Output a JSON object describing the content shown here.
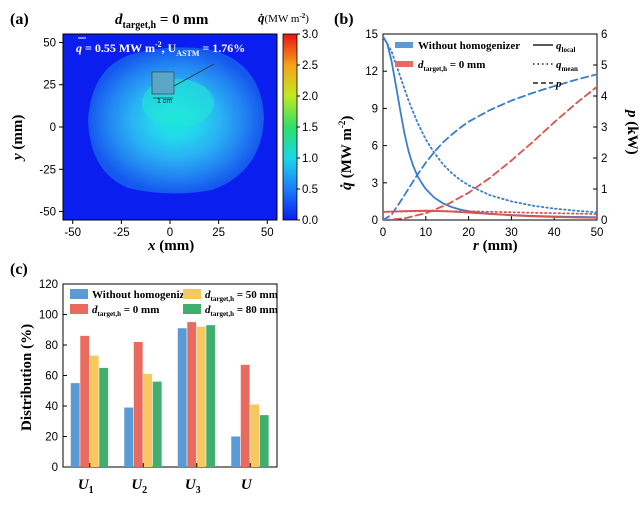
{
  "panels": {
    "a": {
      "label": "(a)",
      "title_d": "d",
      "title_sub": "target,h",
      "title_rest": " = 0 mm",
      "annotation_q": "q",
      "annotation_rest1": " = 0.55 MW m",
      "annotation_sup": "-2",
      "annotation_rest2": ", U",
      "annotation_sub": "ASTM",
      "annotation_rest3": " = 1.76%",
      "scale_bar": "1 cm",
      "colorbar_title": "q̇",
      "colorbar_unit": "(MW m",
      "colorbar_unit_sup": "-2",
      "colorbar_unit_end": ")",
      "x_label": "x",
      "x_unit": " (mm)",
      "y_label": "y",
      "y_unit": " (mm)"
    },
    "b": {
      "label": "(b)",
      "x_label": "r",
      "x_unit": " (mm)",
      "y_left_label": "q̇",
      "y_left_unit": " (MW m",
      "y_left_sup": "-2",
      "y_left_end": ")",
      "y_right_label": "p",
      "y_right_unit": " (kW)",
      "legend_without": "Without homogenizer",
      "legend_dtarget_d": "d",
      "legend_dtarget_sub": "target,h",
      "legend_dtarget_rest": " = 0 mm",
      "legend_qlocal": "q",
      "legend_qlocal_sub": "local",
      "legend_qmean": "q",
      "legend_qmean_sub": "mean",
      "legend_p": "p"
    },
    "c": {
      "label": "(c)",
      "y_label": "Distribution (%)",
      "categories": [
        {
          "main": "U",
          "sub": "1"
        },
        {
          "main": "U",
          "sub": "2"
        },
        {
          "main": "U",
          "sub": "3"
        },
        {
          "main": "U",
          "sub": ""
        }
      ],
      "legend": [
        {
          "text": "Without homogenizer"
        },
        {
          "d": "d",
          "sub": "target,h",
          "rest": " = 0 mm"
        },
        {
          "d": "d",
          "sub": "target,h",
          "rest": " = 50 mm"
        },
        {
          "d": "d",
          "sub": "target,h",
          "rest": " = 80 mm"
        }
      ]
    }
  },
  "colors": {
    "blue": "#5B9BD5",
    "red": "#E96B5F",
    "yellow": "#F6C85F",
    "green": "#3FAE6E",
    "line_blue": "#3A7DC9",
    "line_red": "#D9534F"
  },
  "chart_data": [
    {
      "type": "heatmap",
      "panel": "(a)",
      "x_range": [
        -55,
        55
      ],
      "y_range": [
        -55,
        55
      ],
      "x_ticks": [
        -50,
        -25,
        0,
        25,
        50
      ],
      "y_ticks": [
        -50,
        -25,
        0,
        25,
        50
      ],
      "colorbar_range": [
        0.0,
        3.0
      ],
      "colorbar_ticks": [
        "0.0",
        "0.5",
        "1.0",
        "1.5",
        "2.0",
        "2.5",
        "3.0"
      ]
    },
    {
      "type": "line",
      "panel": "(b)",
      "x_range": [
        0,
        50
      ],
      "x_ticks": [
        0,
        10,
        20,
        30,
        40,
        50
      ],
      "y_left_range": [
        0,
        15
      ],
      "y_left_ticks": [
        0,
        3,
        6,
        9,
        12,
        15
      ],
      "y_right_range": [
        0,
        6
      ],
      "y_right_ticks": [
        0,
        1,
        2,
        3,
        4,
        5,
        6
      ],
      "series": [
        {
          "name": "Without homogenizer q_local",
          "axis": "left",
          "style": "solid",
          "color": "blue",
          "x": [
            0,
            1,
            2,
            3,
            4,
            5,
            6,
            7,
            8,
            9,
            10,
            12,
            14,
            16,
            18,
            20,
            25,
            30,
            35,
            40,
            45,
            50
          ],
          "y": [
            14.8,
            14.2,
            12.8,
            10.9,
            8.9,
            7.0,
            5.5,
            4.4,
            3.6,
            3.0,
            2.5,
            1.8,
            1.35,
            1.05,
            0.85,
            0.7,
            0.5,
            0.4,
            0.33,
            0.28,
            0.25,
            0.22
          ]
        },
        {
          "name": "Without homogenizer q_mean",
          "axis": "left",
          "style": "dotted",
          "color": "blue",
          "x": [
            0,
            2,
            4,
            6,
            8,
            10,
            12,
            14,
            16,
            18,
            20,
            25,
            30,
            35,
            40,
            45,
            50
          ],
          "y": [
            14.8,
            13.6,
            11.6,
            9.6,
            7.9,
            6.5,
            5.4,
            4.5,
            3.8,
            3.25,
            2.8,
            2.0,
            1.5,
            1.15,
            0.92,
            0.75,
            0.62
          ]
        },
        {
          "name": "Without homogenizer p",
          "axis": "right",
          "style": "dashed",
          "color": "blue",
          "x": [
            0,
            2,
            4,
            6,
            8,
            10,
            12,
            14,
            16,
            18,
            20,
            25,
            30,
            35,
            40,
            45,
            50
          ],
          "y": [
            0.0,
            0.17,
            0.58,
            1.02,
            1.45,
            1.85,
            2.2,
            2.5,
            2.75,
            2.97,
            3.17,
            3.55,
            3.85,
            4.1,
            4.32,
            4.52,
            4.7
          ]
        },
        {
          "name": "d_target,h = 0 mm q_local",
          "axis": "left",
          "style": "solid",
          "color": "red",
          "x": [
            0,
            5,
            10,
            15,
            20,
            25,
            30,
            35,
            40,
            45,
            50
          ],
          "y": [
            0.65,
            0.72,
            0.75,
            0.7,
            0.6,
            0.48,
            0.38,
            0.3,
            0.24,
            0.2,
            0.17
          ]
        },
        {
          "name": "d_target,h = 0 mm q_mean",
          "axis": "left",
          "style": "dotted",
          "color": "red",
          "x": [
            0,
            10,
            20,
            30,
            40,
            50
          ],
          "y": [
            0.65,
            0.72,
            0.7,
            0.62,
            0.55,
            0.48
          ]
        },
        {
          "name": "d_target,h = 0 mm p",
          "axis": "right",
          "style": "dashed",
          "color": "red",
          "x": [
            0,
            5,
            10,
            15,
            20,
            25,
            30,
            35,
            40,
            45,
            50
          ],
          "y": [
            0.0,
            0.05,
            0.22,
            0.5,
            0.88,
            1.36,
            1.92,
            2.52,
            3.15,
            3.75,
            4.3
          ]
        }
      ]
    },
    {
      "type": "bar",
      "panel": "(c)",
      "categories": [
        "U1",
        "U2",
        "U3",
        "U"
      ],
      "ylim": [
        0,
        120
      ],
      "y_ticks": [
        0,
        20,
        40,
        60,
        80,
        100,
        120
      ],
      "series": [
        {
          "name": "Without homogenizer",
          "color": "blue",
          "values": [
            55,
            39,
            91,
            20
          ]
        },
        {
          "name": "d_target,h = 0 mm",
          "color": "red",
          "values": [
            86,
            82,
            95,
            67
          ]
        },
        {
          "name": "d_target,h = 50 mm",
          "color": "yellow",
          "values": [
            73,
            61,
            92,
            41
          ]
        },
        {
          "name": "d_target,h = 80 mm",
          "color": "green",
          "values": [
            65,
            56,
            93,
            34
          ]
        }
      ]
    }
  ]
}
